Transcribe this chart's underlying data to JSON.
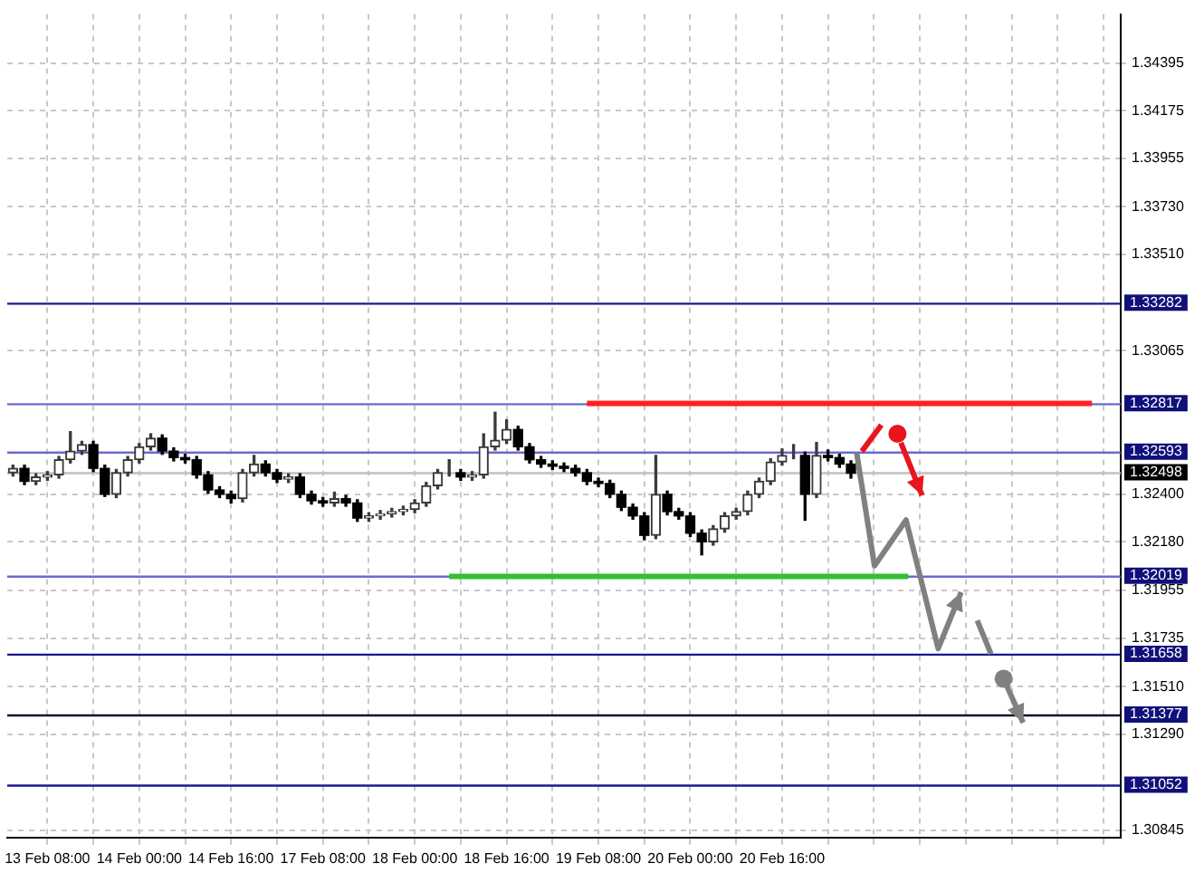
{
  "chart_data": {
    "type": "candlestick",
    "categories": [
      null,
      null,
      null,
      "13 Feb 08:00",
      null,
      null,
      null,
      null,
      null,
      null,
      null,
      "14 Feb 00:00",
      null,
      null,
      null,
      null,
      null,
      null,
      null,
      "14 Feb 16:00",
      null,
      null,
      null,
      null,
      null,
      null,
      null,
      "17 Feb 08:00",
      null,
      null,
      null,
      null,
      null,
      null,
      null,
      "18 Feb 00:00",
      null,
      null,
      null,
      null,
      null,
      null,
      null,
      "18 Feb 16:00",
      null,
      null,
      null,
      null,
      null,
      null,
      null,
      "19 Feb 08:00",
      null,
      null,
      null,
      null,
      null,
      null,
      null,
      "20 Feb 00:00",
      null,
      null,
      null,
      null,
      null,
      null,
      null,
      "20 Feb 16:00",
      null,
      null,
      null,
      null,
      null,
      null,
      null,
      null,
      null,
      null,
      null,
      null,
      null,
      null,
      null,
      null,
      null,
      null,
      null,
      null,
      null,
      null,
      null,
      null,
      null,
      null,
      null,
      null,
      null
    ],
    "ohlc": [
      [
        1.325,
        1.32535,
        1.32485,
        1.3252
      ],
      [
        1.3252,
        1.32535,
        1.32445,
        1.3246
      ],
      [
        1.3246,
        1.32495,
        1.32445,
        1.3248
      ],
      [
        1.3248,
        1.32505,
        1.32465,
        1.3249
      ],
      [
        1.3249,
        1.32575,
        1.32475,
        1.3256
      ],
      [
        1.3256,
        1.3269,
        1.32545,
        1.326
      ],
      [
        1.326,
        1.32645,
        1.32585,
        1.3263
      ],
      [
        1.3263,
        1.32645,
        1.32505,
        1.3252
      ],
      [
        1.3252,
        1.32535,
        1.3239,
        1.324
      ],
      [
        1.324,
        1.32515,
        1.32385,
        1.325
      ],
      [
        1.325,
        1.32575,
        1.32485,
        1.3256
      ],
      [
        1.3256,
        1.32635,
        1.32545,
        1.3262
      ],
      [
        1.3262,
        1.3268,
        1.32605,
        1.3266
      ],
      [
        1.3266,
        1.32675,
        1.32585,
        1.326
      ],
      [
        1.326,
        1.32615,
        1.32555,
        1.3257
      ],
      [
        1.3257,
        1.32585,
        1.32545,
        1.3256
      ],
      [
        1.3256,
        1.32575,
        1.32475,
        1.3249
      ],
      [
        1.3249,
        1.32505,
        1.32405,
        1.3242
      ],
      [
        1.3242,
        1.32435,
        1.32385,
        1.324
      ],
      [
        1.324,
        1.32415,
        1.3236,
        1.3238
      ],
      [
        1.3238,
        1.32515,
        1.32365,
        1.325
      ],
      [
        1.325,
        1.3258,
        1.32485,
        1.3254
      ],
      [
        1.3254,
        1.32555,
        1.32485,
        1.325
      ],
      [
        1.325,
        1.32515,
        1.32455,
        1.3247
      ],
      [
        1.3247,
        1.32495,
        1.32455,
        1.3248
      ],
      [
        1.3248,
        1.32495,
        1.32385,
        1.324
      ],
      [
        1.324,
        1.32415,
        1.32355,
        1.3237
      ],
      [
        1.3237,
        1.32385,
        1.32345,
        1.3236
      ],
      [
        1.3236,
        1.3241,
        1.32345,
        1.3238
      ],
      [
        1.3238,
        1.32395,
        1.32345,
        1.3236
      ],
      [
        1.3236,
        1.32375,
        1.32275,
        1.3229
      ],
      [
        1.3229,
        1.32315,
        1.32275,
        1.323
      ],
      [
        1.323,
        1.32325,
        1.32285,
        1.3231
      ],
      [
        1.3231,
        1.32335,
        1.32295,
        1.3232
      ],
      [
        1.3232,
        1.32345,
        1.32305,
        1.3233
      ],
      [
        1.3233,
        1.32375,
        1.32315,
        1.3236
      ],
      [
        1.3236,
        1.32455,
        1.32345,
        1.3244
      ],
      [
        1.3244,
        1.32515,
        1.32425,
        1.325
      ],
      [
        1.325,
        1.3256,
        1.32485,
        1.325
      ],
      [
        1.325,
        1.32515,
        1.32465,
        1.3248
      ],
      [
        1.3248,
        1.32505,
        1.32465,
        1.3249
      ],
      [
        1.3249,
        1.3268,
        1.32475,
        1.3262
      ],
      [
        1.3262,
        1.3278,
        1.32605,
        1.3265
      ],
      [
        1.3265,
        1.32745,
        1.32635,
        1.327
      ],
      [
        1.327,
        1.32715,
        1.32605,
        1.3262
      ],
      [
        1.3262,
        1.32635,
        1.32545,
        1.3256
      ],
      [
        1.3256,
        1.32575,
        1.32525,
        1.3254
      ],
      [
        1.3254,
        1.32555,
        1.32515,
        1.3253
      ],
      [
        1.3253,
        1.32545,
        1.32505,
        1.3252
      ],
      [
        1.3252,
        1.32535,
        1.32485,
        1.325
      ],
      [
        1.325,
        1.32515,
        1.32445,
        1.3246
      ],
      [
        1.3246,
        1.32475,
        1.32435,
        1.3245
      ],
      [
        1.3245,
        1.32465,
        1.32385,
        1.324
      ],
      [
        1.324,
        1.32415,
        1.32325,
        1.3234
      ],
      [
        1.3234,
        1.32355,
        1.32285,
        1.323
      ],
      [
        1.323,
        1.32315,
        1.3219,
        1.3221
      ],
      [
        1.3221,
        1.3258,
        1.32195,
        1.324
      ],
      [
        1.324,
        1.32415,
        1.32305,
        1.3232
      ],
      [
        1.3232,
        1.32335,
        1.32285,
        1.323
      ],
      [
        1.323,
        1.32315,
        1.32205,
        1.3222
      ],
      [
        1.3222,
        1.32235,
        1.3212,
        1.3218
      ],
      [
        1.3218,
        1.32255,
        1.32165,
        1.3224
      ],
      [
        1.3224,
        1.32315,
        1.32225,
        1.323
      ],
      [
        1.323,
        1.32335,
        1.32285,
        1.3232
      ],
      [
        1.3232,
        1.32415,
        1.32305,
        1.324
      ],
      [
        1.324,
        1.32475,
        1.32385,
        1.3246
      ],
      [
        1.3246,
        1.32565,
        1.32445,
        1.3255
      ],
      [
        1.3255,
        1.3261,
        1.32535,
        1.3258
      ],
      [
        1.3258,
        1.3263,
        1.32565,
        1.3258
      ],
      [
        1.3258,
        1.32595,
        1.3228,
        1.324
      ],
      [
        1.324,
        1.3264,
        1.32385,
        1.3258
      ],
      [
        1.3258,
        1.32605,
        1.32555,
        1.3257
      ],
      [
        1.3257,
        1.32585,
        1.32525,
        1.3254
      ],
      [
        1.3254,
        1.32555,
        1.32475,
        1.32498
      ],
      null,
      null,
      null,
      null,
      null,
      null,
      null,
      null,
      null,
      null,
      null,
      null,
      null,
      null,
      null,
      null,
      null,
      null,
      null,
      null,
      null,
      null,
      null
    ],
    "series": [
      {
        "type": "line",
        "values": [
          null,
          null,
          null,
          null,
          null,
          null,
          null,
          null,
          null,
          null,
          null,
          null,
          null,
          null,
          null,
          null,
          null,
          null,
          null,
          null,
          null,
          null,
          null,
          null,
          null,
          null,
          null,
          null,
          null,
          null,
          null,
          null,
          null,
          null,
          null,
          null,
          null,
          null,
          null,
          null,
          null,
          null,
          null,
          null,
          null,
          null,
          null,
          null,
          null,
          null,
          1.3282,
          1.3282,
          1.3282,
          1.3282,
          1.3282,
          1.3282,
          1.3282,
          1.3282,
          1.3282,
          1.3282,
          1.3282,
          1.3282,
          1.3282,
          1.3282,
          1.3282,
          1.3282,
          1.3282,
          1.3282,
          1.3282,
          1.3282,
          1.3282,
          1.3282,
          1.3282,
          1.3282,
          1.3282,
          1.3282,
          1.3282,
          1.3282,
          1.3282,
          1.3282,
          1.3282,
          1.3282,
          1.3282,
          1.3282,
          1.3282,
          1.3282,
          1.3282,
          1.3282,
          1.3282,
          1.3282,
          1.3282,
          1.3282,
          1.3282,
          1.3282,
          1.3282,
          null,
          null
        ],
        "color": "#ff2020"
      },
      {
        "type": "line",
        "values": [
          null,
          null,
          null,
          null,
          null,
          null,
          null,
          null,
          null,
          null,
          null,
          null,
          null,
          null,
          null,
          null,
          null,
          null,
          null,
          null,
          null,
          null,
          null,
          null,
          null,
          null,
          null,
          null,
          null,
          null,
          null,
          null,
          null,
          null,
          null,
          null,
          null,
          null,
          1.3202,
          1.3202,
          1.3202,
          1.3202,
          1.3202,
          1.3202,
          1.3202,
          1.3202,
          1.3202,
          1.3202,
          1.3202,
          1.3202,
          1.3202,
          1.3202,
          1.3202,
          1.3202,
          1.3202,
          1.3202,
          1.3202,
          1.3202,
          1.3202,
          1.3202,
          1.3202,
          1.3202,
          1.3202,
          1.3202,
          1.3202,
          1.3202,
          1.3202,
          1.3202,
          1.3202,
          1.3202,
          1.3202,
          1.3202,
          1.3202,
          1.3202,
          1.3202,
          1.3202,
          1.3202,
          1.3202,
          1.3202,
          null,
          null,
          null,
          null,
          null,
          null,
          null,
          null,
          null,
          null,
          null,
          null,
          null,
          null,
          null,
          null,
          null,
          null
        ],
        "color": "#30c030"
      }
    ],
    "ylim": [
      1.30812,
      1.34622
    ],
    "yticks": [
      1.34395,
      1.34175,
      1.33955,
      {
        "value": 1.3373,
        "label": "1.33730"
      },
      {
        "value": 1.3351,
        "label": "1.33510"
      },
      1.33065,
      {
        "value": 1.324,
        "label": "1.32400"
      },
      {
        "value": 1.3218,
        "label": "1.32180"
      },
      1.31955,
      1.31735,
      {
        "value": 1.3151,
        "label": "1.31510"
      },
      {
        "value": 1.3129,
        "label": "1.31290"
      },
      1.30845
    ],
    "ref_lines": [
      {
        "axis": "y",
        "value": 1.33282,
        "label": "1.33282",
        "color": "#1a1a8c"
      },
      {
        "axis": "y",
        "value": 1.32817,
        "label": "1.32817",
        "color": "#6a6ad0"
      },
      {
        "axis": "y",
        "value": 1.32593,
        "label": "1.32593",
        "color": "#6a6ad0"
      },
      {
        "axis": "y",
        "value": 1.32498,
        "label": "1.32498",
        "color": "#c0c0c0"
      },
      {
        "axis": "y",
        "value": 1.32019,
        "label": "1.32019",
        "color": "#6a6ad0"
      },
      {
        "axis": "y",
        "value": 1.31658,
        "label": "1.31658",
        "color": "#1a1a8c"
      },
      {
        "axis": "y",
        "value": 1.31377,
        "label": "1.31377",
        "color": "#101030"
      },
      {
        "axis": "y",
        "value": 1.31052,
        "label": "1.31052",
        "color": "#1a1a8c"
      }
    ],
    "grid": true
  }
}
